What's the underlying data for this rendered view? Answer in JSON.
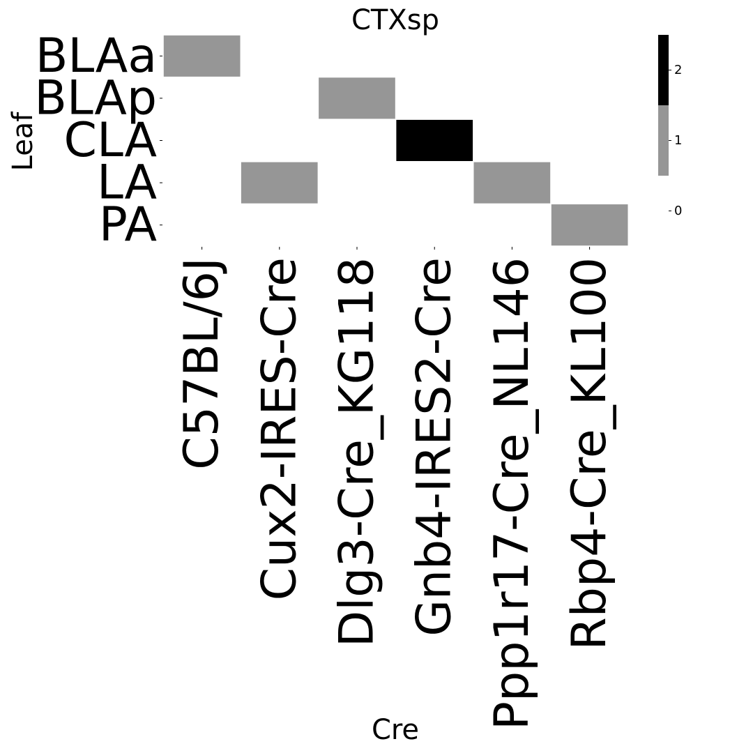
{
  "chart_data": {
    "type": "heatmap",
    "title": "CTXsp",
    "xlabel": "Cre",
    "ylabel": "Leaf",
    "x_categories": [
      "C57BL/6J",
      "Cux2-IRES-Cre",
      "Dlg3-Cre_KG118",
      "Gnb4-IRES2-Cre",
      "Ppp1r17-Cre_NL146",
      "Rbp4-Cre_KL100"
    ],
    "y_categories": [
      "BLAa",
      "BLAp",
      "CLA",
      "LA",
      "PA"
    ],
    "values": [
      [
        1,
        0,
        0,
        0,
        0,
        0
      ],
      [
        0,
        0,
        1,
        0,
        0,
        0
      ],
      [
        0,
        0,
        0,
        2,
        0,
        0
      ],
      [
        0,
        1,
        0,
        0,
        1,
        0
      ],
      [
        0,
        0,
        0,
        0,
        0,
        1
      ]
    ],
    "colorbar": {
      "ticks": [
        0,
        1,
        2
      ],
      "levels": [
        {
          "value": 0,
          "color": "#ffffff"
        },
        {
          "value": 1,
          "color": "#969696"
        },
        {
          "value": 2,
          "color": "#000000"
        }
      ]
    }
  }
}
